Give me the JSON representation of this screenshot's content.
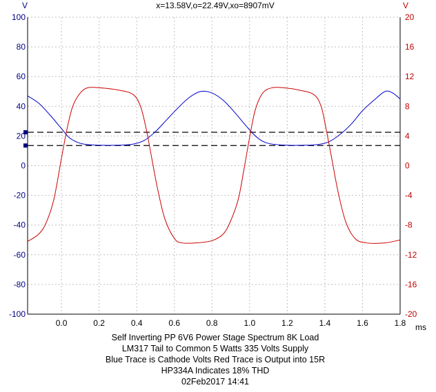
{
  "readout": "x=13.58V,o=22.49V,xo=8907mV",
  "caption_lines": [
    "Self Inverting PP 6V6 Power Stage Spectrum 8K Load",
    "LM317 Tail to Common 5 Watts 335 Volts Supply",
    "Blue Trace is Cathode Volts Red Trace is Output into 15R",
    "HP334A Indicates 18% THD",
    "02Feb2017  14:41"
  ],
  "colors": {
    "left_axis": "#000080",
    "right_axis": "#c00000",
    "blue_trace": "#0000cc",
    "red_trace": "#cc0000",
    "grid": "#bfbfbf",
    "cursor": "#000000"
  },
  "chart_data": {
    "type": "line",
    "x_unit": "ms",
    "x_range": [
      -0.18,
      1.8
    ],
    "x_ticks": [
      "0.0",
      "0.2",
      "0.4",
      "0.6",
      "0.8",
      "1.0",
      "1.2",
      "1.4",
      "1.6",
      "1.8"
    ],
    "x_tick_values": [
      0.0,
      0.2,
      0.4,
      0.6,
      0.8,
      1.0,
      1.2,
      1.4,
      1.6,
      1.8
    ],
    "left_axis": {
      "unit": "V",
      "range": [
        -100,
        100
      ],
      "ticks": [
        "100",
        "80",
        "60",
        "40",
        "20",
        "0",
        "-20",
        "-40",
        "-60",
        "-80",
        "-100"
      ],
      "tick_values": [
        100,
        80,
        60,
        40,
        20,
        0,
        -20,
        -40,
        -60,
        -80,
        -100
      ]
    },
    "right_axis": {
      "unit": "V",
      "range": [
        -20,
        20
      ],
      "ticks": [
        "20",
        "16",
        "12",
        "8",
        "4",
        "0",
        "-4",
        "-8",
        "-12",
        "-16",
        "-20"
      ],
      "tick_values": [
        20,
        16,
        12,
        8,
        4,
        0,
        -4,
        -8,
        -12,
        -16,
        -20
      ]
    },
    "grid": true,
    "cursors": [
      {
        "value": 22.49,
        "axis": "left"
      },
      {
        "value": 13.58,
        "axis": "left"
      }
    ],
    "series": [
      {
        "axis": "left",
        "x": [
          -0.18,
          -0.12,
          -0.06,
          0.0,
          0.04,
          0.08,
          0.12,
          0.2,
          0.3,
          0.38,
          0.44,
          0.5,
          0.56,
          0.62,
          0.68,
          0.74,
          0.8,
          0.86,
          0.92,
          0.98,
          1.04,
          1.1,
          1.2,
          1.3,
          1.36,
          1.42,
          1.48,
          1.54,
          1.6,
          1.66,
          1.72,
          1.76,
          1.8
        ],
        "y": [
          47,
          42,
          34,
          25,
          19,
          16,
          14.5,
          13.8,
          13.8,
          14.5,
          17,
          23,
          31,
          39,
          46,
          50,
          49,
          44,
          36,
          27,
          19,
          15,
          13.8,
          13.8,
          14.2,
          16,
          21,
          28,
          37,
          44,
          50,
          49,
          45
        ]
      },
      {
        "axis": "right",
        "x": [
          -0.18,
          -0.12,
          -0.08,
          -0.04,
          0.0,
          0.03,
          0.06,
          0.1,
          0.14,
          0.2,
          0.3,
          0.38,
          0.42,
          0.45,
          0.48,
          0.51,
          0.55,
          0.6,
          0.64,
          0.72,
          0.8,
          0.86,
          0.9,
          0.94,
          0.97,
          1.0,
          1.03,
          1.07,
          1.12,
          1.18,
          1.26,
          1.34,
          1.38,
          1.41,
          1.44,
          1.47,
          1.51,
          1.56,
          1.62,
          1.72,
          1.8
        ],
        "y": [
          -10.2,
          -9.2,
          -7.6,
          -4.5,
          1.0,
          5.0,
          8.0,
          9.8,
          10.5,
          10.5,
          10.2,
          9.6,
          8.0,
          5.0,
          1.0,
          -3.0,
          -7.2,
          -9.8,
          -10.4,
          -10.4,
          -10.1,
          -9.2,
          -7.4,
          -4.5,
          -0.5,
          3.8,
          7.5,
          9.8,
          10.5,
          10.5,
          10.2,
          9.6,
          8.0,
          4.5,
          0.5,
          -3.5,
          -7.5,
          -9.8,
          -10.4,
          -10.4,
          -10.0
        ]
      }
    ]
  }
}
